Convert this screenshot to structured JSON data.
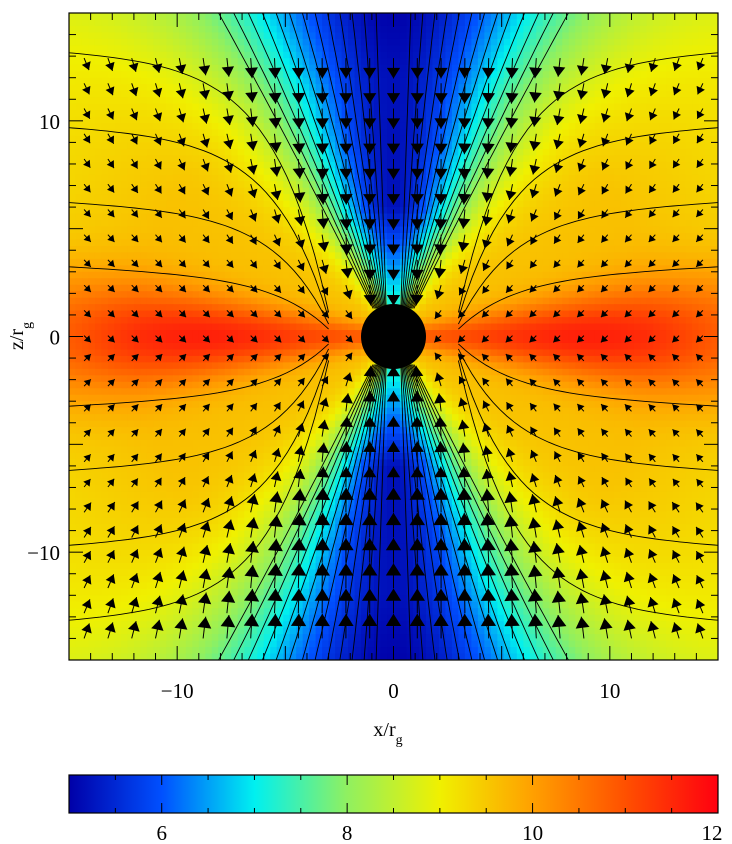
{
  "chart_data": {
    "type": "heatmap",
    "title": "",
    "xlabel": "x/r",
    "xlabel_sub": "g",
    "ylabel": "z/r",
    "ylabel_sub": "g",
    "xlim": [
      -15,
      15
    ],
    "ylim": [
      -15,
      15
    ],
    "x_ticks": [
      -10,
      0,
      10
    ],
    "y_ticks": [
      10,
      0,
      -10
    ],
    "x_tick_labels": [
      "−10",
      "0",
      "10"
    ],
    "y_tick_labels": [
      "10",
      "0",
      "−10"
    ],
    "colorbar": {
      "range": [
        5,
        12
      ],
      "ticks": [
        6,
        8,
        10,
        12
      ],
      "tick_labels": [
        "6",
        "8",
        "10",
        "12"
      ],
      "colormap": [
        "#0000a8",
        "#0050ff",
        "#00f0f0",
        "#90f060",
        "#f0f000",
        "#ffa000",
        "#ff5000",
        "#ff0010"
      ]
    },
    "overlays": {
      "central_object": {
        "x": 0,
        "y": 0,
        "radius": 1.5,
        "color": "#000000"
      },
      "contour_lines": true,
      "velocity_vectors": true
    },
    "field_description_values": {
      "funnel_min": 5.2,
      "equatorial_max": 11.6,
      "ambient": 9.0
    }
  }
}
